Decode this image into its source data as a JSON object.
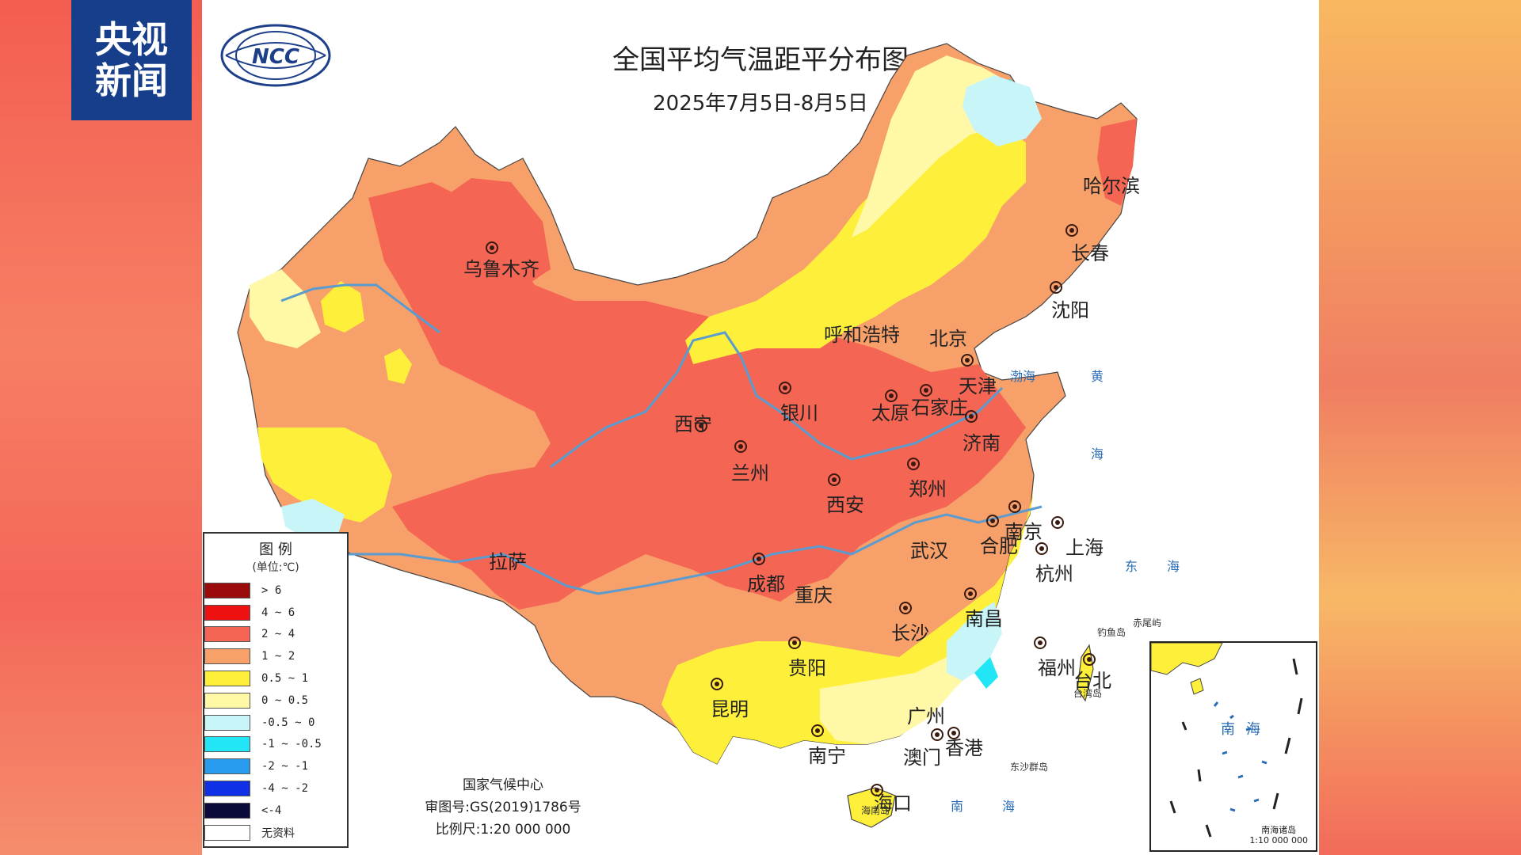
{
  "broadcaster": {
    "line1": "央视",
    "line2": "新闻"
  },
  "org_logo": "NCC",
  "title": "全国平均气温距平分布图",
  "date_range": "2025年7月5日-8月5日",
  "legend": {
    "title": "图 例",
    "unit": "(单位:℃)",
    "items": [
      {
        "label": "> 6",
        "color": "#9b0b0b"
      },
      {
        "label": "4 ~ 6",
        "color": "#ee1111"
      },
      {
        "label": "2 ~ 4",
        "color": "#f46553"
      },
      {
        "label": "1 ~ 2",
        "color": "#f7a06a"
      },
      {
        "label": "0.5 ~ 1",
        "color": "#fef03a"
      },
      {
        "label": "0 ~ 0.5",
        "color": "#fff8a6"
      },
      {
        "label": "-0.5 ~ 0",
        "color": "#c8f5f8"
      },
      {
        "label": "-1 ~ -0.5",
        "color": "#22e6f6"
      },
      {
        "label": "-2 ~ -1",
        "color": "#2a9cf0"
      },
      {
        "label": "-4 ~ -2",
        "color": "#1030e8"
      },
      {
        "label": "<-4",
        "color": "#0a0a3a"
      },
      {
        "label": "无资料",
        "color": "#ffffff"
      }
    ]
  },
  "footer": {
    "org": "国家气候中心",
    "map_no": "审图号:GS(2019)1786号",
    "scale": "比例尺:1:20 000 000"
  },
  "cities": {
    "urumqi": "乌鲁木齐",
    "harbin": "哈尔滨",
    "changchun": "长春",
    "shenyang": "沈阳",
    "hohhot": "呼和浩特",
    "beijing": "北京",
    "tianjin": "天津",
    "shijiazhuang": "石家庄",
    "taiyuan": "太原",
    "yinchuan": "银川",
    "xining": "西宁",
    "lanzhou": "兰州",
    "jinan": "济南",
    "zhengzhou": "郑州",
    "xian": "西安",
    "nanjing": "南京",
    "hefei": "合肥",
    "shanghai": "上海",
    "wuhan": "武汉",
    "hangzhou": "杭州",
    "lhasa": "拉萨",
    "chengdu": "成都",
    "chongqing": "重庆",
    "changsha": "长沙",
    "nanchang": "南昌",
    "guiyang": "贵阳",
    "fuzhou": "福州",
    "taipei": "台北",
    "kunming": "昆明",
    "guangzhou": "广州",
    "nanning": "南宁",
    "macau": "澳门",
    "hongkong": "香港",
    "haikou": "海口"
  },
  "seas": {
    "bohai": "渤海",
    "huanghai_1": "黄",
    "huanghai_2": "海",
    "donghai_1": "东",
    "donghai_2": "海",
    "nanhai_1": "南",
    "nanhai_2": "海",
    "inset_nanhai_1": "南",
    "inset_nanhai_2": "海"
  },
  "islands": {
    "diaoyu": "钓鱼岛",
    "chiwei": "赤尾屿",
    "dongsha": "东沙群岛",
    "taiwan": "台湾岛",
    "hainan": "海南岛"
  },
  "inset": {
    "label": "南海诸岛",
    "scale": "1:10 000 000"
  }
}
